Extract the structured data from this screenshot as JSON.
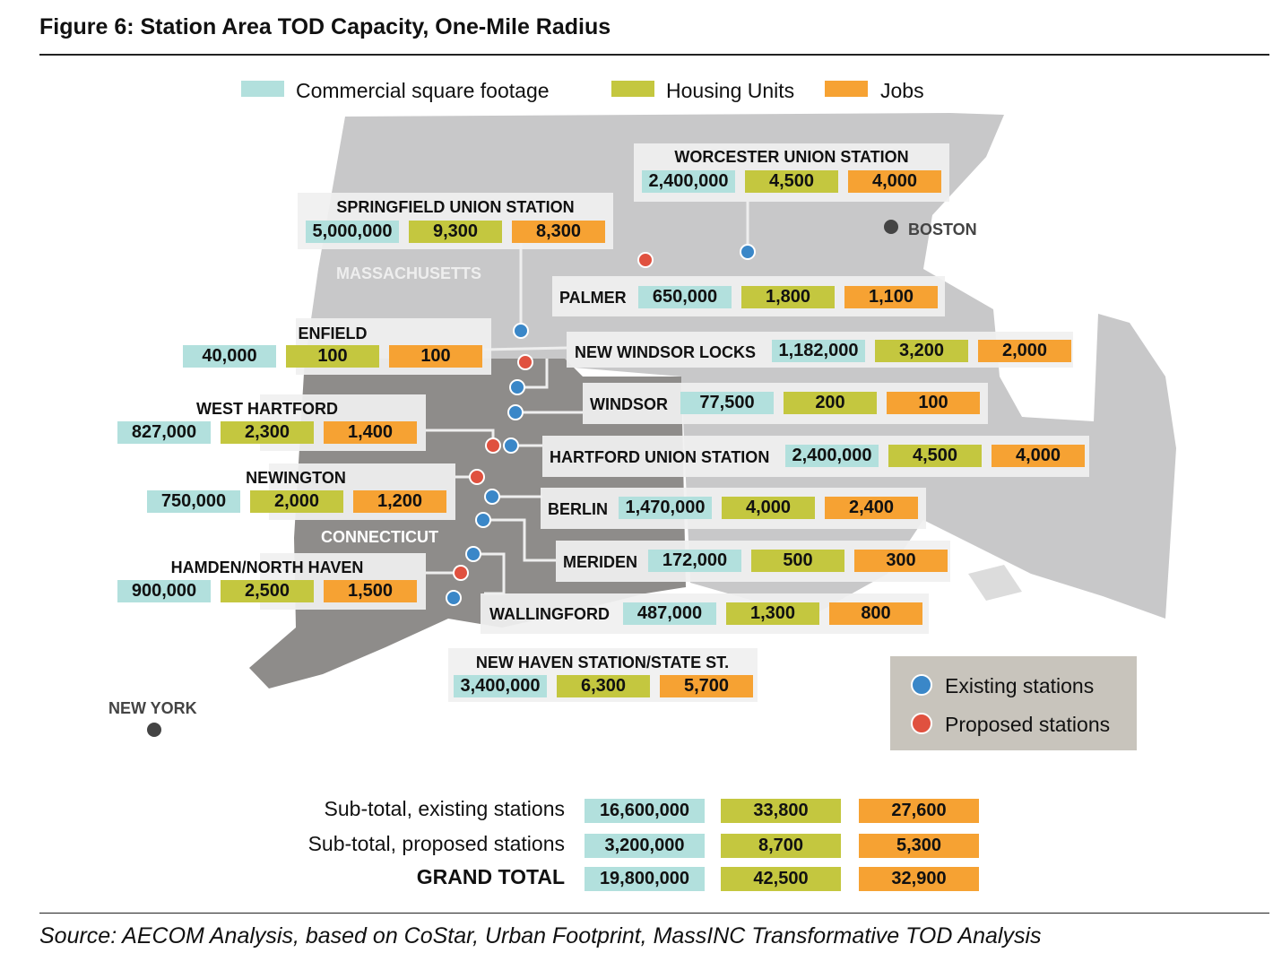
{
  "title": "Figure 6: Station Area TOD Capacity, One-Mile Radius",
  "legend": [
    {
      "label": "Commercial square footage",
      "color": "#b2e0dd"
    },
    {
      "label": "Housing Units",
      "color": "#c4c73f"
    },
    {
      "label": "Jobs",
      "color": "#f6a233"
    }
  ],
  "map_labels": {
    "massachusetts": "MASSACHUSETTS",
    "connecticut": "CONNECTICUT",
    "boston": "BOSTON",
    "new_york": "NEW YORK"
  },
  "stations": [
    {
      "name": "WORCESTER UNION STATION",
      "values": [
        "2,400,000",
        "4,500",
        "4,000"
      ]
    },
    {
      "name": "SPRINGFIELD UNION STATION",
      "values": [
        "5,000,000",
        "9,300",
        "8,300"
      ]
    },
    {
      "name": "PALMER",
      "values": [
        "650,000",
        "1,800",
        "1,100"
      ]
    },
    {
      "name": "ENFIELD",
      "values": [
        "40,000",
        "100",
        "100"
      ]
    },
    {
      "name": "NEW WINDSOR LOCKS",
      "values": [
        "1,182,000",
        "3,200",
        "2,000"
      ]
    },
    {
      "name": "WINDSOR",
      "values": [
        "77,500",
        "200",
        "100"
      ]
    },
    {
      "name": "WEST HARTFORD",
      "values": [
        "827,000",
        "2,300",
        "1,400"
      ]
    },
    {
      "name": "HARTFORD UNION STATION",
      "values": [
        "2,400,000",
        "4,500",
        "4,000"
      ]
    },
    {
      "name": "NEWINGTON",
      "values": [
        "750,000",
        "2,000",
        "1,200"
      ]
    },
    {
      "name": "BERLIN",
      "values": [
        "1,470,000",
        "4,000",
        "2,400"
      ]
    },
    {
      "name": "MERIDEN",
      "values": [
        "172,000",
        "500",
        "300"
      ]
    },
    {
      "name": "HAMDEN/NORTH HAVEN",
      "values": [
        "900,000",
        "2,500",
        "1,500"
      ]
    },
    {
      "name": "WALLINGFORD",
      "values": [
        "487,000",
        "1,300",
        "800"
      ]
    },
    {
      "name": "NEW HAVEN STATION/STATE ST.",
      "values": [
        "3,400,000",
        "6,300",
        "5,700"
      ]
    }
  ],
  "station_legend": [
    {
      "label": "Existing stations",
      "color": "#3a87c8"
    },
    {
      "label": "Proposed stations",
      "color": "#e0513f"
    }
  ],
  "totals": [
    {
      "label": "Sub-total, existing stations",
      "values": [
        "16,600,000",
        "33,800",
        "27,600"
      ]
    },
    {
      "label": "Sub-total, proposed stations",
      "values": [
        "3,200,000",
        "8,700",
        "5,300"
      ]
    },
    {
      "label": "GRAND TOTAL",
      "values": [
        "19,800,000",
        "42,500",
        "32,900"
      ]
    }
  ],
  "source": "Source: AECOM Analysis, based on CoStar, Urban Footprint, MassINC Transformative TOD Analysis"
}
